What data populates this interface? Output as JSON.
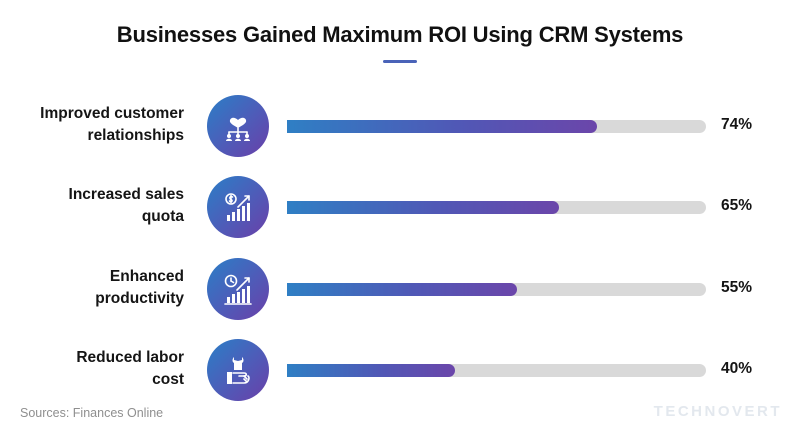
{
  "title": "Businesses Gained Maximum ROI Using CRM Systems",
  "source": "Sources: Finances Online",
  "brand": "TECHNOVERT",
  "colors": {
    "bar_start": "#2f7fc4",
    "bar_end": "#6b46aa",
    "track": "#d9d9d9",
    "title_underline": "#4a63b8"
  },
  "chart_data": {
    "type": "bar",
    "orientation": "horizontal",
    "title": "Businesses Gained Maximum ROI Using CRM Systems",
    "categories": [
      "Improved customer relationships",
      "Increased sales quota",
      "Enhanced productivity",
      "Reduced labor cost"
    ],
    "values": [
      74,
      65,
      55,
      40
    ],
    "value_labels": [
      "74%",
      "65%",
      "55%",
      "40%"
    ],
    "unit": "%",
    "xlim": [
      0,
      100
    ],
    "grid": false,
    "legend": "none"
  },
  "rows": [
    {
      "label_lines": [
        "Improved customer",
        "relationships"
      ],
      "icon": "handshake-network-icon",
      "pct": "74%"
    },
    {
      "label_lines": [
        "Increased sales",
        "quota"
      ],
      "icon": "dollar-growth-chart-icon",
      "pct": "65%"
    },
    {
      "label_lines": [
        "Enhanced",
        "productivity"
      ],
      "icon": "clock-growth-chart-icon",
      "pct": "55%"
    },
    {
      "label_lines": [
        "Reduced labor",
        "cost"
      ],
      "icon": "hand-wrench-icon",
      "pct": "40%"
    }
  ]
}
